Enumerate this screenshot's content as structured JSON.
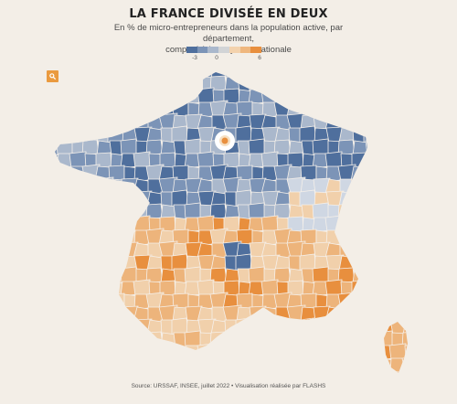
{
  "header": {
    "title": "LA FRANCE DIVISÉE EN DEUX",
    "subtitle_line1": "En % de micro-entrepreneurs dans la population active, par département,",
    "subtitle_line2": "comparé à la moyenne nationale"
  },
  "legend": {
    "ticks": [
      "-3",
      "0",
      "6"
    ],
    "colors": [
      "#4f6f9d",
      "#7c94b7",
      "#aab8cc",
      "#d2d4d6",
      "#f3d2ad",
      "#efb77e",
      "#e88f3e"
    ]
  },
  "search": {
    "icon": "search-icon",
    "color": "#ea9a3f"
  },
  "map": {
    "colors": {
      "very_negative": "#4f6f9d",
      "negative": "#7c94b7",
      "slightly_negative": "#aab8cc",
      "neutral": "#cfd7e3",
      "slightly_positive": "#f1d0ab",
      "positive": "#edb47b",
      "very_positive": "#e88f3e",
      "border": "#f5f0ea"
    }
  },
  "footer": {
    "source": "Source: URSSAF, INSEE, juillet 2022 • Visualisation réalisée par FLASHS"
  }
}
